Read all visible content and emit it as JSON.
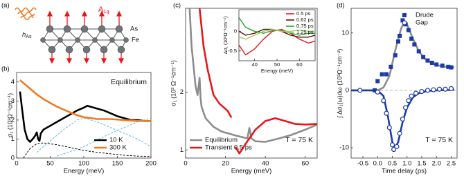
{
  "panel_labels": [
    "(a)",
    "(b)",
    "(c)",
    "(d)"
  ],
  "diagram": {
    "h_label": {
      "main": "h",
      "sub": "As"
    },
    "mode_label": {
      "main": "A",
      "sub": "1g"
    },
    "atom_labels": [
      "As",
      "Fe"
    ]
  },
  "chart_data": [
    {
      "type": "line",
      "xlabel": "Energy (meV)",
      "ylabel": "σ₁ (10³Ω⁻¹cm⁻¹)",
      "xlim": [
        0,
        200
      ],
      "ylim": [
        0,
        4.5
      ],
      "xticks": [
        0,
        50,
        100,
        150,
        200
      ],
      "yticks": [
        0,
        1,
        2,
        3,
        4
      ],
      "legend": "bottom-right",
      "annotations": [
        {
          "text": "Equilibrium",
          "position": "top-right"
        }
      ],
      "series": [
        {
          "name": "10 K",
          "color": "#000000",
          "x": [
            5,
            8,
            12,
            16,
            20,
            25,
            28,
            30,
            32,
            34,
            36,
            40,
            50,
            60,
            70,
            80,
            90,
            100,
            105,
            110,
            120,
            130,
            140,
            150,
            160,
            170,
            180,
            190,
            200
          ],
          "values": [
            3.5,
            2.6,
            1.5,
            1.0,
            0.85,
            1.05,
            1.2,
            1.35,
            1.0,
            0.9,
            1.3,
            1.5,
            1.7,
            1.9,
            2.1,
            2.3,
            2.5,
            2.65,
            2.75,
            2.7,
            2.6,
            2.5,
            2.35,
            2.2,
            2.1,
            2.0,
            2.0,
            1.95,
            1.95
          ]
        },
        {
          "name": "300 K",
          "color": "#f07a1e",
          "x": [
            5,
            10,
            20,
            30,
            40,
            50,
            60,
            70,
            80,
            90,
            100,
            110,
            120,
            140,
            160,
            180,
            200
          ],
          "values": [
            4.1,
            3.95,
            3.65,
            3.35,
            3.1,
            2.9,
            2.7,
            2.55,
            2.4,
            2.25,
            2.15,
            2.1,
            2.05,
            2.05,
            2.0,
            1.95,
            1.95
          ]
        },
        {
          "color": "#000000",
          "dash": true,
          "x": [
            10,
            20,
            30,
            40,
            60,
            80,
            100,
            120,
            140,
            160,
            180,
            200
          ],
          "values": [
            0,
            0.5,
            0.75,
            0.8,
            0.7,
            0.55,
            0.4,
            0.3,
            0.22,
            0.15,
            0.1,
            0.08
          ]
        },
        {
          "color": "#5fb4e6",
          "dash": true,
          "x": [
            30,
            50,
            70,
            90,
            100,
            120,
            140,
            160,
            180,
            200
          ],
          "values": [
            0.3,
            0.9,
            1.5,
            2.0,
            2.1,
            1.9,
            1.6,
            1.3,
            1.0,
            0.6
          ]
        },
        {
          "color": "#5fb4e6",
          "dash": true,
          "x": [
            60,
            100,
            140,
            180,
            200
          ],
          "values": [
            0.1,
            0.6,
            1.3,
            1.9,
            2.1
          ]
        }
      ]
    },
    {
      "type": "line",
      "xlabel": "Energy (meV)",
      "ylabel": "σ₁ (10³ Ω⁻¹cm⁻¹)",
      "xlim": [
        0,
        66
      ],
      "ylim": [
        0.86,
        3.45
      ],
      "xticks": [
        0,
        20,
        40,
        60
      ],
      "yticks": [
        1,
        2
      ],
      "legend": "bottom-left",
      "annotations": [
        {
          "text": "T = 75 K",
          "position": "bottom-right"
        }
      ],
      "series": [
        {
          "name": "Equilibrium",
          "color": "#8c8c8c",
          "x": [
            2,
            3,
            5,
            6,
            7,
            7.5,
            8,
            10,
            14,
            18,
            25,
            31,
            32,
            33,
            35,
            40,
            47,
            53,
            60,
            66
          ],
          "values": [
            3.45,
            2.8,
            2.1,
            1.95,
            2.25,
            1.9,
            1.75,
            1.55,
            1.4,
            1.32,
            1.25,
            1.2,
            1.38,
            1.2,
            1.15,
            1.14,
            1.2,
            1.26,
            1.35,
            1.44
          ]
        },
        {
          "name": "Transient 0.5 ps",
          "color": "#e8151b",
          "x": [
            7,
            9,
            11,
            14,
            17,
            21,
            23,
            24,
            25,
            27,
            30,
            35,
            40,
            45,
            50,
            55,
            60,
            66
          ],
          "values": [
            3.45,
            2.8,
            2.4,
            1.95,
            1.8,
            1.68,
            1.56,
            null,
            1.05,
            0.94,
            1.1,
            1.35,
            1.5,
            1.55,
            1.5,
            1.45,
            1.44,
            1.45
          ]
        }
      ]
    },
    {
      "type": "line",
      "xlabel": "Energy (meV)",
      "ylabel": "Δσ₁ (10³Ω⁻¹cm⁻¹)",
      "xlim": [
        33,
        67
      ],
      "ylim": [
        -0.75,
        0.55
      ],
      "xticks": [
        40,
        50,
        60
      ],
      "yticks": [
        -0.5,
        0
      ],
      "legend": "top-right",
      "series": [
        {
          "name": "0.5 ps",
          "color": "#e8151b",
          "x": [
            33,
            36,
            40,
            44,
            48,
            52,
            56,
            60,
            64,
            67
          ],
          "values": [
            -0.35,
            -0.6,
            -0.45,
            -0.2,
            0.0,
            0.05,
            -0.05,
            -0.2,
            -0.3,
            -0.25
          ]
        },
        {
          "name": "0.62 ps",
          "color": "#5a1010",
          "x": [
            33,
            36,
            40,
            44,
            48,
            52,
            56,
            60,
            64,
            67
          ],
          "values": [
            0.0,
            -0.1,
            -0.05,
            0.05,
            0.05,
            0.0,
            -0.1,
            -0.15,
            -0.15,
            -0.1
          ]
        },
        {
          "name": "0.75 ps",
          "color": "#2a9d2a",
          "x": [
            33,
            36,
            40,
            44,
            48,
            52,
            56,
            60,
            64,
            67
          ],
          "values": [
            0.35,
            0.1,
            0.0,
            -0.05,
            0.02,
            0.02,
            -0.05,
            -0.1,
            -0.05,
            -0.05
          ]
        },
        {
          "name": "1.25 ps",
          "color": "#9ccf5a",
          "x": [
            33,
            36,
            40,
            44,
            48,
            52,
            56,
            60,
            64,
            67
          ],
          "values": [
            -0.15,
            -0.2,
            -0.1,
            0.0,
            0.05,
            0.0,
            0.0,
            0.03,
            0.0,
            0.0
          ]
        }
      ]
    },
    {
      "type": "scatter",
      "xlabel": "Time delay (ps)",
      "ylabel": "∫ Δσ₁(ω)dω (10³Ω⁻¹cm⁻²)",
      "xlim": [
        -0.9,
        2.7
      ],
      "ylim": [
        -11.8,
        14.3
      ],
      "xticks": [
        -0.5,
        {
          "value": 0,
          "label": "0.0"
        },
        0.5,
        {
          "value": 1,
          "label": "1.0"
        },
        1.5,
        {
          "value": 2,
          "label": "2.0"
        },
        2.5
      ],
      "yticks": [
        -10,
        0,
        10
      ],
      "zero_line": true,
      "legend": "top-right",
      "annotations": [
        {
          "text": "T = 75 K",
          "position": "bottom-right"
        }
      ],
      "series": [
        {
          "color": "#8c8c8c",
          "x": [
            -0.9,
            0,
            0.2,
            0.4,
            0.6,
            0.8,
            0.9,
            1.0,
            1.2,
            1.4,
            1.6,
            1.8,
            2.0,
            2.3,
            2.6
          ],
          "values": [
            0,
            0,
            0.5,
            2.5,
            7.0,
            10.8,
            11.8,
            11.5,
            9.0,
            6.8,
            5.5,
            4.8,
            4.4,
            4.1,
            4.0
          ]
        },
        {
          "color": "#1c3aa6",
          "x": [
            -0.9,
            0,
            0.2,
            0.35,
            0.5,
            0.6,
            0.7,
            0.85,
            1.0,
            1.2,
            1.4,
            1.7,
            2.0,
            2.6
          ],
          "values": [
            0,
            0,
            -1.0,
            -4.5,
            -9.0,
            -10.0,
            -9.0,
            -5.5,
            -3.0,
            -1.2,
            -0.5,
            -0.1,
            0,
            0.1
          ]
        },
        {
          "name": "Drude",
          "color": "#1c3aa6",
          "marker": "square",
          "x": [
            -0.1,
            0,
            0.15,
            0.3,
            0.45,
            0.6,
            0.7,
            0.75,
            0.85,
            0.95,
            1.05,
            1.15,
            1.25,
            1.4,
            1.55,
            1.7,
            1.85,
            2.0,
            2.2,
            2.4,
            2.5
          ],
          "values": [
            0,
            1.6,
            2.8,
            2.8,
            4.1,
            6.1,
            8.5,
            9.5,
            12.2,
            11.5,
            10.5,
            9,
            8,
            6.8,
            5.8,
            5.2,
            4.8,
            4.5,
            4.3,
            4.1,
            4.0
          ]
        },
        {
          "name": "Gap",
          "color": "#1c3aa6",
          "marker": "circle-open",
          "x": [
            -0.6,
            0,
            0.2,
            0.3,
            0.4,
            0.5,
            0.55,
            0.65,
            0.75,
            0.85,
            0.95,
            1.05,
            1.15,
            1.3,
            1.5,
            1.7,
            1.9,
            2.1,
            2.3,
            2.5
          ],
          "values": [
            0,
            -0.3,
            -1.8,
            -4.0,
            -6.5,
            -9.5,
            -10.3,
            -9.8,
            -7.5,
            -5.0,
            -3.0,
            -1.8,
            -1.0,
            -0.5,
            -0.2,
            0,
            0.1,
            0.2,
            0.2,
            0.3
          ]
        }
      ]
    }
  ]
}
